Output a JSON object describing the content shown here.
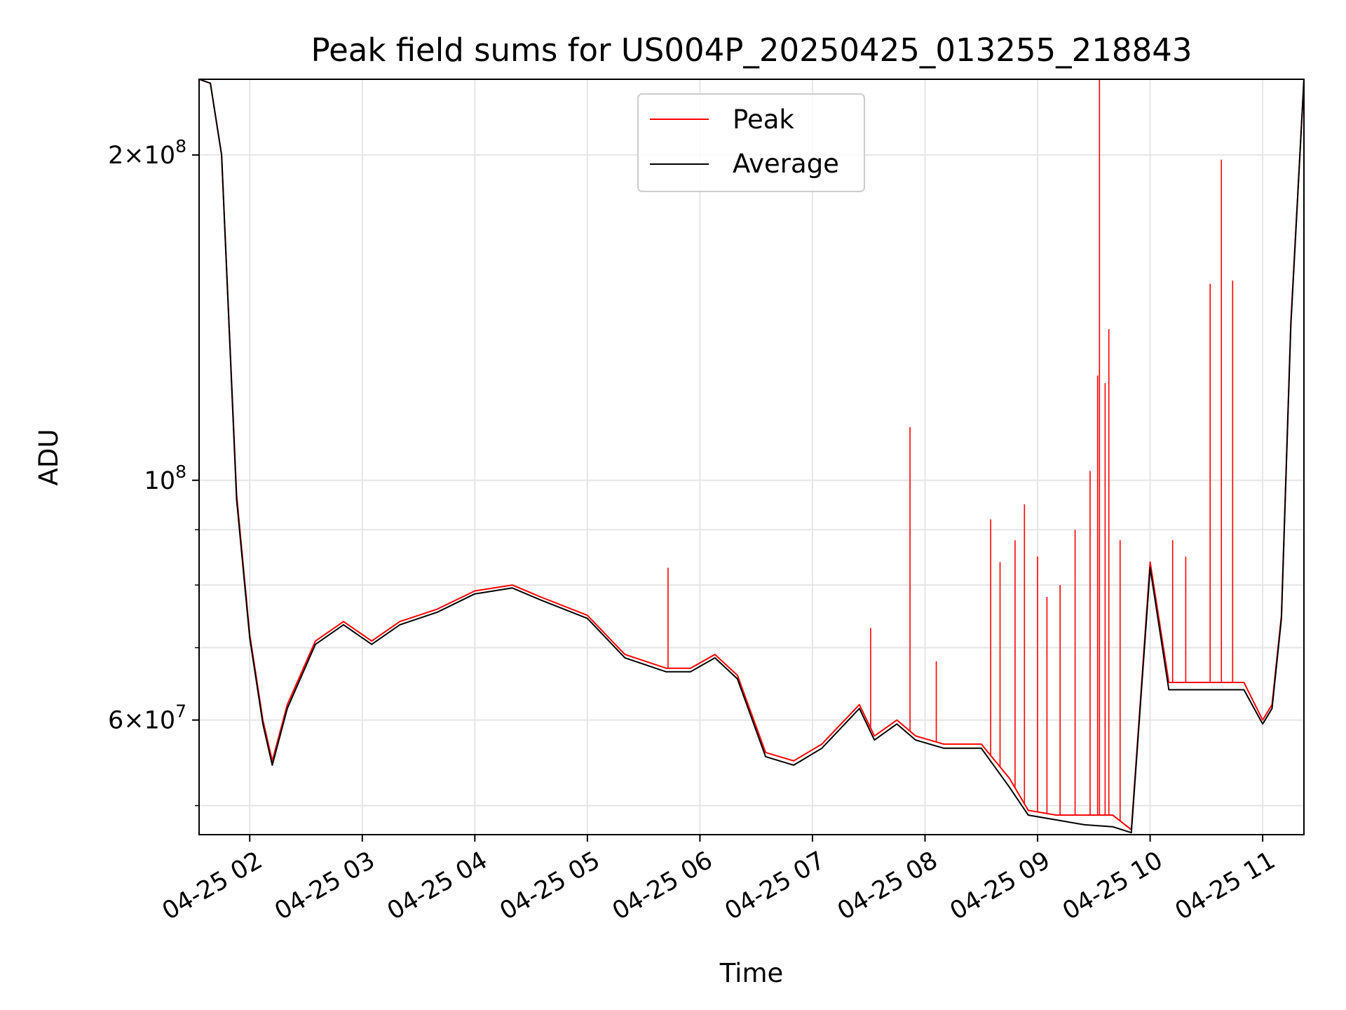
{
  "chart_data": {
    "type": "line",
    "title": "Peak field sums for US004P_20250425_013255_218843",
    "xlabel": "Time",
    "ylabel": "ADU",
    "yscale": "log",
    "grid": true,
    "legend_position": "top-center",
    "xlim": [
      "2025-04-25 01:33",
      "2025-04-25 11:22"
    ],
    "ylim": [
      47000000,
      235000000
    ],
    "x_ticks": [
      "04-25 02",
      "04-25 03",
      "04-25 04",
      "04-25 05",
      "04-25 06",
      "04-25 07",
      "04-25 08",
      "04-25 09",
      "04-25 10",
      "04-25 11"
    ],
    "y_ticks": [
      {
        "value": 60000000,
        "mantissa": "6",
        "exponent": "7"
      },
      {
        "value": 100000000,
        "mantissa": "",
        "exponent": "8"
      },
      {
        "value": 200000000,
        "mantissa": "2",
        "exponent": "8"
      }
    ],
    "y_minor_ticks": [
      50000000,
      70000000,
      80000000,
      90000000
    ],
    "series": [
      {
        "name": "Peak",
        "color": "#ff0000",
        "x": [
          "2025-04-25 01:33",
          "2025-04-25 01:39",
          "2025-04-25 01:45",
          "2025-04-25 01:53",
          "2025-04-25 02:00",
          "2025-04-25 02:07",
          "2025-04-25 02:12",
          "2025-04-25 02:20",
          "2025-04-25 02:35",
          "2025-04-25 02:50",
          "2025-04-25 03:05",
          "2025-04-25 03:20",
          "2025-04-25 03:40",
          "2025-04-25 04:00",
          "2025-04-25 04:20",
          "2025-04-25 04:35",
          "2025-04-25 05:00",
          "2025-04-25 05:20",
          "2025-04-25 05:42",
          "2025-04-25 05:55",
          "2025-04-25 06:08",
          "2025-04-25 06:20",
          "2025-04-25 06:35",
          "2025-04-25 06:50",
          "2025-04-25 07:05",
          "2025-04-25 07:25",
          "2025-04-25 07:33",
          "2025-04-25 07:45",
          "2025-04-25 07:55",
          "2025-04-25 08:10",
          "2025-04-25 08:30",
          "2025-04-25 08:45",
          "2025-04-25 08:55",
          "2025-04-25 09:10",
          "2025-04-25 09:25",
          "2025-04-25 09:40",
          "2025-04-25 09:50",
          "2025-04-25 10:00",
          "2025-04-25 10:10",
          "2025-04-25 10:30",
          "2025-04-25 10:50",
          "2025-04-25 11:00",
          "2025-04-25 11:05",
          "2025-04-25 11:10",
          "2025-04-25 11:15",
          "2025-04-25 11:22"
        ],
        "y": [
          235000000,
          233000000,
          200000000,
          97000000,
          72000000,
          60000000,
          55000000,
          62000000,
          71000000,
          74000000,
          71000000,
          74000000,
          76000000,
          79000000,
          80000000,
          78000000,
          75000000,
          69000000,
          67000000,
          67000000,
          69000000,
          66000000,
          56000000,
          55000000,
          57000000,
          62000000,
          58000000,
          60000000,
          58000000,
          57000000,
          57000000,
          53000000,
          49500000,
          49000000,
          49000000,
          49000000,
          47500000,
          84000000,
          65000000,
          65000000,
          65000000,
          60000000,
          62000000,
          75000000,
          140000000,
          235000000
        ],
        "spikes": [
          {
            "x": "2025-04-25 05:43",
            "y": 83000000
          },
          {
            "x": "2025-04-25 07:31",
            "y": 73000000
          },
          {
            "x": "2025-04-25 07:52",
            "y": 112000000
          },
          {
            "x": "2025-04-25 08:06",
            "y": 68000000
          },
          {
            "x": "2025-04-25 08:35",
            "y": 92000000
          },
          {
            "x": "2025-04-25 08:40",
            "y": 84000000
          },
          {
            "x": "2025-04-25 08:48",
            "y": 88000000
          },
          {
            "x": "2025-04-25 08:53",
            "y": 95000000
          },
          {
            "x": "2025-04-25 09:00",
            "y": 85000000
          },
          {
            "x": "2025-04-25 09:05",
            "y": 78000000
          },
          {
            "x": "2025-04-25 09:12",
            "y": 80000000
          },
          {
            "x": "2025-04-25 09:20",
            "y": 90000000
          },
          {
            "x": "2025-04-25 09:28",
            "y": 102000000
          },
          {
            "x": "2025-04-25 09:32",
            "y": 125000000
          },
          {
            "x": "2025-04-25 09:33",
            "y": 235000000
          },
          {
            "x": "2025-04-25 09:36",
            "y": 123000000
          },
          {
            "x": "2025-04-25 09:38",
            "y": 138000000
          },
          {
            "x": "2025-04-25 09:44",
            "y": 88000000
          },
          {
            "x": "2025-04-25 10:12",
            "y": 88000000
          },
          {
            "x": "2025-04-25 10:19",
            "y": 85000000
          },
          {
            "x": "2025-04-25 10:32",
            "y": 152000000
          },
          {
            "x": "2025-04-25 10:38",
            "y": 198000000
          },
          {
            "x": "2025-04-25 10:44",
            "y": 153000000
          }
        ]
      },
      {
        "name": "Average",
        "color": "#000000",
        "x": [
          "2025-04-25 01:33",
          "2025-04-25 01:39",
          "2025-04-25 01:45",
          "2025-04-25 01:53",
          "2025-04-25 02:00",
          "2025-04-25 02:07",
          "2025-04-25 02:12",
          "2025-04-25 02:20",
          "2025-04-25 02:35",
          "2025-04-25 02:50",
          "2025-04-25 03:05",
          "2025-04-25 03:20",
          "2025-04-25 03:40",
          "2025-04-25 04:00",
          "2025-04-25 04:20",
          "2025-04-25 04:35",
          "2025-04-25 05:00",
          "2025-04-25 05:20",
          "2025-04-25 05:42",
          "2025-04-25 05:55",
          "2025-04-25 06:08",
          "2025-04-25 06:20",
          "2025-04-25 06:35",
          "2025-04-25 06:50",
          "2025-04-25 07:05",
          "2025-04-25 07:25",
          "2025-04-25 07:33",
          "2025-04-25 07:45",
          "2025-04-25 07:55",
          "2025-04-25 08:10",
          "2025-04-25 08:30",
          "2025-04-25 08:45",
          "2025-04-25 08:55",
          "2025-04-25 09:10",
          "2025-04-25 09:25",
          "2025-04-25 09:40",
          "2025-04-25 09:50",
          "2025-04-25 10:00",
          "2025-04-25 10:10",
          "2025-04-25 10:30",
          "2025-04-25 10:50",
          "2025-04-25 11:00",
          "2025-04-25 11:05",
          "2025-04-25 11:10",
          "2025-04-25 11:15",
          "2025-04-25 11:22"
        ],
        "y": [
          235000000,
          233000000,
          200000000,
          96000000,
          71500000,
          59500000,
          54500000,
          61500000,
          70500000,
          73500000,
          70500000,
          73500000,
          75500000,
          78500000,
          79500000,
          77500000,
          74500000,
          68500000,
          66500000,
          66500000,
          68500000,
          65500000,
          55500000,
          54500000,
          56500000,
          61500000,
          57500000,
          59500000,
          57500000,
          56500000,
          56500000,
          52000000,
          49000000,
          48500000,
          48000000,
          47800000,
          47200000,
          83000000,
          64000000,
          64000000,
          64000000,
          59500000,
          61500000,
          74500000,
          139000000,
          235000000
        ]
      }
    ]
  }
}
